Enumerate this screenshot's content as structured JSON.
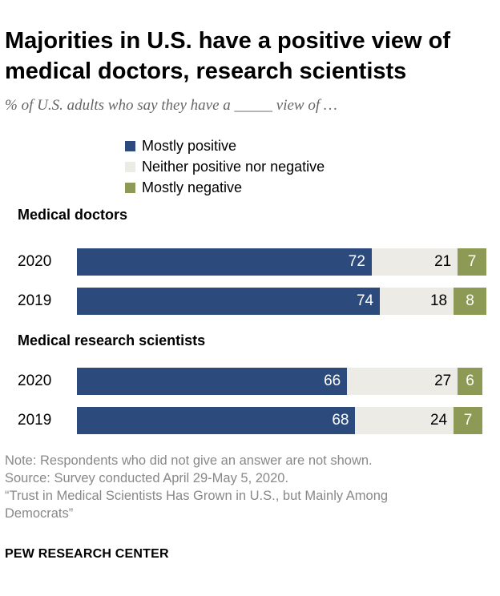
{
  "title": "Majorities in U.S. have a positive view of medical doctors, research scientists",
  "subtitle": "% of U.S. adults who say they have a _____ view of …",
  "legend": [
    {
      "label": "Mostly positive",
      "color": "#2c4b7c"
    },
    {
      "label": "Neither positive nor negative",
      "color": "#ecebe6"
    },
    {
      "label": "Mostly negative",
      "color": "#8c9a56"
    }
  ],
  "chart_data": {
    "type": "bar",
    "orientation": "horizontal",
    "stacked": true,
    "xlim": [
      0,
      100
    ],
    "series": [
      {
        "name": "Mostly positive",
        "color": "#2c4b7c"
      },
      {
        "name": "Neither positive nor negative",
        "color": "#ecebe6"
      },
      {
        "name": "Mostly negative",
        "color": "#8c9a56"
      }
    ],
    "groups": [
      {
        "label": "Medical doctors",
        "rows": [
          {
            "year": "2020",
            "values": [
              72,
              21,
              7
            ]
          },
          {
            "year": "2019",
            "values": [
              74,
              18,
              8
            ]
          }
        ]
      },
      {
        "label": "Medical research scientists",
        "rows": [
          {
            "year": "2020",
            "values": [
              66,
              27,
              6
            ]
          },
          {
            "year": "2019",
            "values": [
              68,
              24,
              7
            ]
          }
        ]
      }
    ]
  },
  "notes": {
    "note": "Note: Respondents who did not give an answer are not shown.",
    "source": "Source: Survey conducted April 29-May 5, 2020.",
    "report_line1": "“Trust in Medical Scientists Has Grown in U.S., but Mainly Among",
    "report_line2": "Democrats”"
  },
  "brand": "PEW RESEARCH CENTER"
}
